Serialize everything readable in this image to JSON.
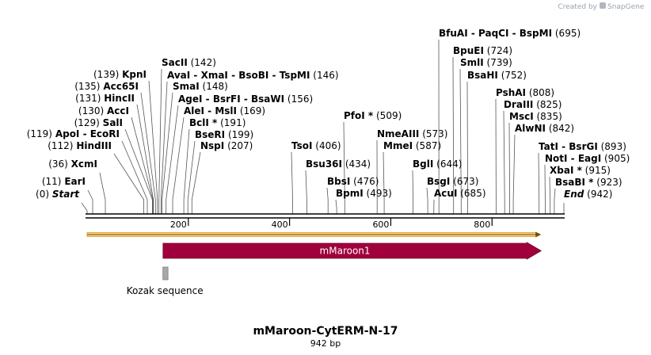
{
  "credit": {
    "prefix": "Created by",
    "brand": "SnapGene"
  },
  "title": "mMaroon-CytERM-N-17",
  "length_text": "942 bp",
  "sequence_length": 942,
  "axis": {
    "ticks": [
      200,
      400,
      600,
      800
    ]
  },
  "colors": {
    "feature": "#a0003c",
    "orf": "#e8a838",
    "kozak": "#a8a8a8",
    "leader": "#555555"
  },
  "sites": [
    {
      "id": "start",
      "name": "Start",
      "pos": 0,
      "pos_text": "(0)",
      "label_first": true,
      "italic": true
    },
    {
      "id": "eari",
      "name": "EarI",
      "pos": 11,
      "pos_text": "(11)",
      "label_first": true
    },
    {
      "id": "xcmi",
      "name": "XcmI",
      "pos": 36,
      "pos_text": "(36)",
      "label_first": true
    },
    {
      "id": "hindiii",
      "name": "HindIII",
      "pos": 112,
      "pos_text": "(112)",
      "label_first": true
    },
    {
      "id": "apoi",
      "name": "ApoI  -  EcoRI",
      "pos": 119,
      "pos_text": "(119)",
      "label_first": true
    },
    {
      "id": "sali",
      "name": "SalI",
      "pos": 129,
      "pos_text": "(129)",
      "label_first": true
    },
    {
      "id": "acci",
      "name": "AccI",
      "pos": 130,
      "pos_text": "(130)",
      "label_first": true
    },
    {
      "id": "hincii",
      "name": "HincII",
      "pos": 131,
      "pos_text": "(131)",
      "label_first": true
    },
    {
      "id": "acc65i",
      "name": "Acc65I",
      "pos": 135,
      "pos_text": "(135)",
      "label_first": true
    },
    {
      "id": "kpni",
      "name": "KpnI",
      "pos": 139,
      "pos_text": "(139)",
      "label_first": true
    },
    {
      "id": "sacii",
      "name": "SacII",
      "pos": 142,
      "pos_text": "(142)"
    },
    {
      "id": "avai",
      "name": "AvaI  -  XmaI  -  BsoBI  -  TspMI",
      "pos": 146,
      "pos_text": "(146)"
    },
    {
      "id": "smai",
      "name": "SmaI",
      "pos": 148,
      "pos_text": "(148)"
    },
    {
      "id": "agei",
      "name": "AgeI  -  BsrFI  -  BsaWI",
      "pos": 156,
      "pos_text": "(156)"
    },
    {
      "id": "alei",
      "name": "AleI  -  MslI",
      "pos": 169,
      "pos_text": "(169)"
    },
    {
      "id": "bcli",
      "name": "BclI *",
      "pos": 191,
      "pos_text": "(191)"
    },
    {
      "id": "bseri",
      "name": "BseRI",
      "pos": 199,
      "pos_text": "(199)"
    },
    {
      "id": "nspi",
      "name": "NspI",
      "pos": 207,
      "pos_text": "(207)"
    },
    {
      "id": "tsoi",
      "name": "TsoI",
      "pos": 406,
      "pos_text": "(406)"
    },
    {
      "id": "bsu36i",
      "name": "Bsu36I",
      "pos": 434,
      "pos_text": "(434)"
    },
    {
      "id": "bbsi",
      "name": "BbsI",
      "pos": 476,
      "pos_text": "(476)"
    },
    {
      "id": "bpmi",
      "name": "BpmI",
      "pos": 493,
      "pos_text": "(493)"
    },
    {
      "id": "pfoi",
      "name": "PfoI *",
      "pos": 509,
      "pos_text": "(509)"
    },
    {
      "id": "nmeaiii",
      "name": "NmeAIII",
      "pos": 573,
      "pos_text": "(573)"
    },
    {
      "id": "mmei",
      "name": "MmeI",
      "pos": 587,
      "pos_text": "(587)"
    },
    {
      "id": "bgli",
      "name": "BglI",
      "pos": 644,
      "pos_text": "(644)"
    },
    {
      "id": "bsgi",
      "name": "BsgI",
      "pos": 673,
      "pos_text": "(673)"
    },
    {
      "id": "acui",
      "name": "AcuI",
      "pos": 685,
      "pos_text": "(685)"
    },
    {
      "id": "bfuai",
      "name": "BfuAI  -  PaqCI  -  BspMI",
      "pos": 695,
      "pos_text": "(695)"
    },
    {
      "id": "bpuei",
      "name": "BpuEI",
      "pos": 724,
      "pos_text": "(724)"
    },
    {
      "id": "smli",
      "name": "SmlI",
      "pos": 739,
      "pos_text": "(739)"
    },
    {
      "id": "bsahi",
      "name": "BsaHI",
      "pos": 752,
      "pos_text": "(752)"
    },
    {
      "id": "pshai",
      "name": "PshAI",
      "pos": 808,
      "pos_text": "(808)"
    },
    {
      "id": "draiii",
      "name": "DraIII",
      "pos": 825,
      "pos_text": "(825)"
    },
    {
      "id": "msci",
      "name": "MscI",
      "pos": 835,
      "pos_text": "(835)"
    },
    {
      "id": "alwni",
      "name": "AlwNI",
      "pos": 842,
      "pos_text": "(842)"
    },
    {
      "id": "tati",
      "name": "TatI  -  BsrGI",
      "pos": 893,
      "pos_text": "(893)"
    },
    {
      "id": "noti",
      "name": "NotI  -  EagI",
      "pos": 905,
      "pos_text": "(905)"
    },
    {
      "id": "xbai",
      "name": "XbaI *",
      "pos": 915,
      "pos_text": "(915)"
    },
    {
      "id": "bsabi",
      "name": "BsaBI *",
      "pos": 923,
      "pos_text": "(923)"
    },
    {
      "id": "end",
      "name": "End",
      "pos": 942,
      "pos_text": "(942)",
      "italic": true
    }
  ],
  "features": [
    {
      "id": "orf",
      "name": "",
      "start": 0,
      "end": 897,
      "kind": "orf"
    },
    {
      "id": "mmaroon1",
      "name": "mMaroon1",
      "start": 150,
      "end": 897,
      "kind": "arrow"
    },
    {
      "id": "kozak",
      "name": "Kozak sequence",
      "start": 149,
      "end": 159,
      "kind": "box"
    }
  ]
}
